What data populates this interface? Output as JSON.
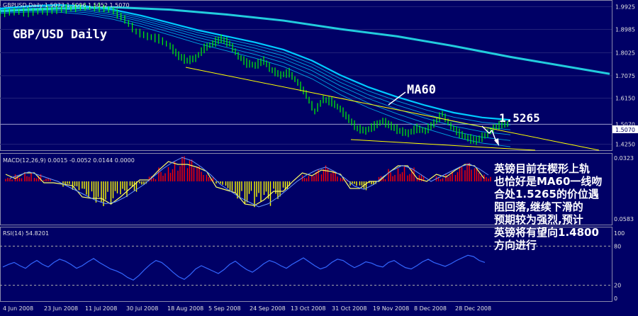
{
  "chart_data": {
    "type": "line",
    "symbol_header": "GBPUSD,Daily  1.5073 1.5096 1.5052 1.5070",
    "title": "GBP/USD Daily",
    "price_ticks": [
      "1.9925",
      "1.8985",
      "1.8025",
      "1.7075",
      "1.6150",
      "1.5070",
      "1.4250"
    ],
    "current_price": "1.5070",
    "ma_label": "MA60",
    "level_label": "1.5265",
    "x_ticks": [
      "4 Jun 2008",
      "23 Jun 2008",
      "11 Jul 2008",
      "30 Jul 2008",
      "18 Aug 2008",
      "5 Sep 2008",
      "24 Sep 2008",
      "13 Oct 2008",
      "31 Oct 2008",
      "19 Nov 2008",
      "8 Dec 2008",
      "28 Dec 2008"
    ],
    "price_series": [
      [
        0,
        1.965
      ],
      [
        5,
        1.972
      ],
      [
        10,
        1.969
      ],
      [
        15,
        1.974
      ],
      [
        20,
        1.98
      ],
      [
        25,
        1.985
      ],
      [
        30,
        1.992
      ],
      [
        35,
        1.99
      ],
      [
        40,
        1.975
      ],
      [
        44,
        1.94
      ],
      [
        48,
        1.89
      ],
      [
        52,
        1.87
      ],
      [
        56,
        1.86
      ],
      [
        60,
        1.83
      ],
      [
        63,
        1.79
      ],
      [
        66,
        1.77
      ],
      [
        69,
        1.78
      ],
      [
        72,
        1.82
      ],
      [
        75,
        1.84
      ],
      [
        78,
        1.86
      ],
      [
        81,
        1.84
      ],
      [
        84,
        1.79
      ],
      [
        87,
        1.76
      ],
      [
        90,
        1.75
      ],
      [
        93,
        1.77
      ],
      [
        96,
        1.73
      ],
      [
        99,
        1.71
      ],
      [
        102,
        1.72
      ],
      [
        105,
        1.68
      ],
      [
        108,
        1.63
      ],
      [
        111,
        1.56
      ],
      [
        114,
        1.61
      ],
      [
        117,
        1.6
      ],
      [
        120,
        1.57
      ],
      [
        123,
        1.53
      ],
      [
        126,
        1.49
      ],
      [
        129,
        1.48
      ],
      [
        132,
        1.5
      ],
      [
        135,
        1.52
      ],
      [
        138,
        1.5
      ],
      [
        141,
        1.48
      ],
      [
        144,
        1.47
      ],
      [
        147,
        1.49
      ],
      [
        150,
        1.48
      ],
      [
        153,
        1.51
      ],
      [
        156,
        1.55
      ],
      [
        159,
        1.5
      ],
      [
        162,
        1.47
      ],
      [
        165,
        1.45
      ],
      [
        168,
        1.44
      ],
      [
        171,
        1.46
      ],
      [
        174,
        1.49
      ],
      [
        177,
        1.51
      ],
      [
        180,
        1.507
      ]
    ],
    "ma60_series": [
      [
        0,
        1.985
      ],
      [
        10,
        1.995
      ],
      [
        20,
        2.0
      ],
      [
        30,
        1.995
      ],
      [
        40,
        1.98
      ],
      [
        50,
        1.955
      ],
      [
        60,
        1.925
      ],
      [
        70,
        1.895
      ],
      [
        80,
        1.87
      ],
      [
        90,
        1.845
      ],
      [
        100,
        1.815
      ],
      [
        110,
        1.77
      ],
      [
        120,
        1.71
      ],
      [
        130,
        1.66
      ],
      [
        140,
        1.62
      ],
      [
        150,
        1.585
      ],
      [
        160,
        1.555
      ],
      [
        170,
        1.535
      ],
      [
        180,
        1.525
      ]
    ],
    "ma200_series": [
      [
        0,
        1.975
      ],
      [
        20,
        1.985
      ],
      [
        40,
        1.99
      ],
      [
        60,
        1.98
      ],
      [
        80,
        1.96
      ],
      [
        100,
        1.935
      ],
      [
        120,
        1.9
      ],
      [
        140,
        1.87
      ],
      [
        160,
        1.83
      ],
      [
        180,
        1.785
      ],
      [
        200,
        1.745
      ],
      [
        215,
        1.715
      ]
    ],
    "macd_header": "MACD(12,26,9) 0.0015 -0.0052 0.0144 0.0000",
    "macd_ticks": [
      "0.0323",
      "0.0583"
    ],
    "macd_hist": [
      0.002,
      0.004,
      0.006,
      0.004,
      0.002,
      0.0,
      -0.003,
      -0.006,
      -0.009,
      -0.012,
      -0.014,
      -0.013,
      -0.01,
      -0.006,
      -0.002,
      0.003,
      0.008,
      0.012,
      0.015,
      0.013,
      0.009,
      0.004,
      -0.002,
      -0.006,
      -0.01,
      -0.013,
      -0.016,
      -0.014,
      -0.01,
      -0.005,
      0.0,
      0.004,
      0.007,
      0.009,
      0.006,
      0.002,
      -0.003,
      -0.005,
      -0.002,
      0.003,
      0.007,
      0.01,
      0.008,
      0.004,
      0.0,
      0.003,
      0.006,
      0.009,
      0.011,
      0.008,
      0.004
    ],
    "rsi_header": "RSI(14) 54.8201",
    "rsi_ticks": [
      "100",
      "80",
      "20",
      "0"
    ],
    "rsi_series": [
      48,
      52,
      55,
      50,
      46,
      53,
      58,
      52,
      48,
      55,
      60,
      57,
      52,
      46,
      50,
      56,
      61,
      55,
      50,
      45,
      42,
      38,
      32,
      28,
      35,
      44,
      52,
      58,
      55,
      48,
      40,
      33,
      29,
      36,
      45,
      50,
      46,
      42,
      38,
      44,
      52,
      57,
      50,
      44,
      40,
      46,
      53,
      58,
      55,
      50,
      46,
      52,
      57,
      62,
      56,
      50,
      45,
      48,
      55,
      60,
      58,
      52,
      47,
      51,
      56,
      54,
      50,
      48,
      55,
      58,
      52,
      47,
      45,
      50,
      56,
      60,
      55,
      52,
      49,
      53,
      58,
      62,
      66,
      64,
      58,
      55
    ]
  },
  "annotation_lines": [
    "英镑目前在楔形上轨",
    "也恰好是MA60一线吻",
    "合处1.5265的价位遇",
    "阻回落,继续下滑的",
    "预期较为强烈,预计",
    "英镑将有望向1.4800",
    "方向进行"
  ],
  "colors": {
    "background": "#000066",
    "price_bars": "#00ff00",
    "ma_fan": "#00ccff",
    "ma_thick": "#22ccdd",
    "wedge": "#ffff00",
    "macd_pos": "#ff0000",
    "macd_neg": "#ffff00",
    "signal": "#ffff66",
    "rsi": "#3366ff"
  }
}
